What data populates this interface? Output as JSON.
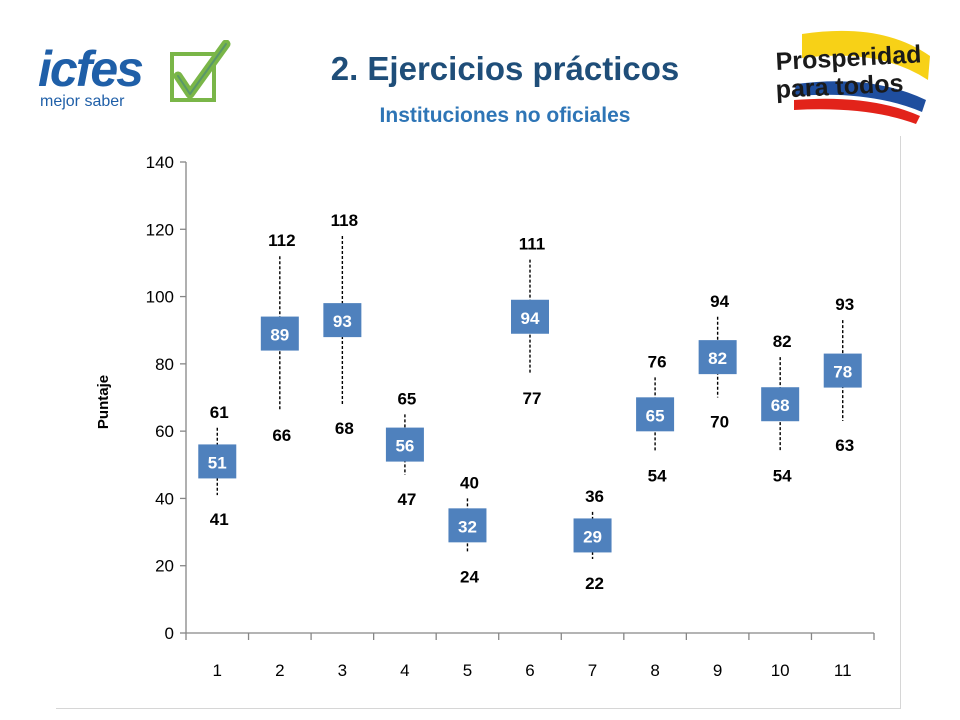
{
  "header": {
    "title": "2. Ejercicios prácticos",
    "subtitle": "Instituciones no oficiales"
  },
  "logos": {
    "left": {
      "word": "icfes",
      "tagline": "mejor saber",
      "icon": "checkmark-icon",
      "brand_color": "#1F5FA8",
      "check_color": "#7AB648"
    },
    "right": {
      "line1": "Prosperidad",
      "line2": "para todos",
      "colors": [
        "#F7D117",
        "#1F4E9E",
        "#E2231A"
      ]
    }
  },
  "chart_data": {
    "type": "box",
    "ylabel": "Puntaje",
    "ylim": [
      0,
      140
    ],
    "yticks": [
      0,
      20,
      40,
      60,
      80,
      100,
      120,
      140
    ],
    "categories": [
      "1",
      "2",
      "3",
      "4",
      "5",
      "6",
      "7",
      "8",
      "9",
      "10",
      "11"
    ],
    "mean": [
      51,
      89,
      93,
      56,
      32,
      94,
      29,
      65,
      82,
      68,
      78
    ],
    "upper": [
      61,
      112,
      118,
      65,
      40,
      111,
      36,
      76,
      94,
      82,
      93
    ],
    "lower": [
      41,
      66,
      68,
      47,
      24,
      77,
      22,
      54,
      70,
      54,
      63
    ],
    "grid": false,
    "box_color": "#4F81BD",
    "label_color": "#000000"
  }
}
